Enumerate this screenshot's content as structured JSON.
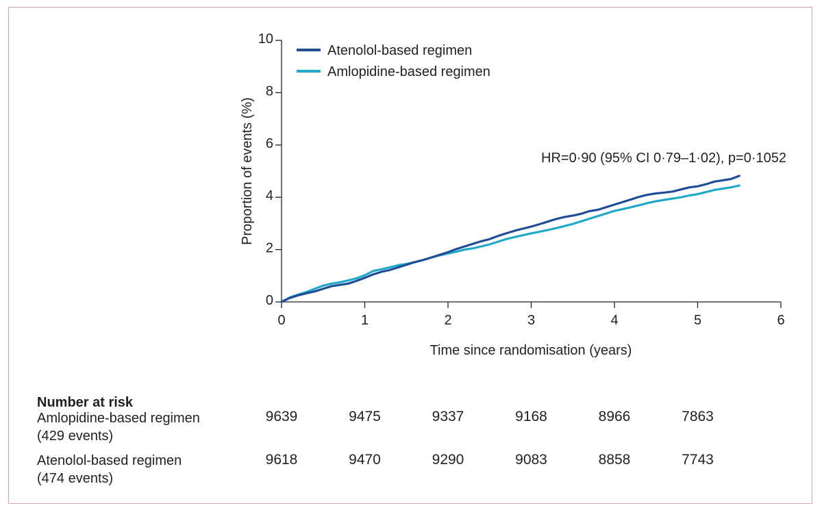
{
  "chart_data": {
    "type": "line",
    "xlabel": "Time since randomisation (years)",
    "ylabel": "Proportion of events (%)",
    "xlim": [
      0,
      6
    ],
    "ylim": [
      0,
      10
    ],
    "xticks": [
      "0",
      "1",
      "2",
      "3",
      "4",
      "5",
      "6"
    ],
    "yticks": [
      "0",
      "2",
      "4",
      "6",
      "8",
      "10"
    ],
    "grid": false,
    "legend_position": "top-left",
    "annotation": "HR=0·90 (95% CI 0·79–1·02), p=0·1052",
    "series": [
      {
        "name": "Atenolol-based regimen",
        "color": "#1f4e96",
        "x": [
          0,
          0.1,
          0.2,
          0.3,
          0.4,
          0.5,
          0.6,
          0.7,
          0.8,
          0.9,
          1.0,
          1.1,
          1.2,
          1.3,
          1.4,
          1.5,
          1.6,
          1.7,
          1.8,
          1.9,
          2.0,
          2.1,
          2.2,
          2.3,
          2.4,
          2.5,
          2.6,
          2.7,
          2.8,
          2.9,
          3.0,
          3.1,
          3.2,
          3.3,
          3.4,
          3.5,
          3.6,
          3.7,
          3.8,
          3.9,
          4.0,
          4.1,
          4.2,
          4.3,
          4.4,
          4.5,
          4.6,
          4.7,
          4.8,
          4.9,
          5.0,
          5.1,
          5.2,
          5.3,
          5.4,
          5.5
        ],
        "values": [
          0,
          0.15,
          0.25,
          0.33,
          0.4,
          0.5,
          0.6,
          0.65,
          0.7,
          0.8,
          0.92,
          1.05,
          1.15,
          1.22,
          1.32,
          1.42,
          1.52,
          1.6,
          1.7,
          1.8,
          1.9,
          2.02,
          2.12,
          2.22,
          2.32,
          2.4,
          2.52,
          2.62,
          2.72,
          2.8,
          2.88,
          2.97,
          3.07,
          3.17,
          3.25,
          3.3,
          3.37,
          3.47,
          3.52,
          3.62,
          3.72,
          3.82,
          3.92,
          4.02,
          4.1,
          4.15,
          4.18,
          4.22,
          4.3,
          4.38,
          4.42,
          4.5,
          4.6,
          4.65,
          4.7,
          4.82
        ]
      },
      {
        "name": "Amlopidine-based regimen",
        "color": "#21a8c9",
        "x": [
          0,
          0.1,
          0.2,
          0.3,
          0.4,
          0.5,
          0.6,
          0.7,
          0.8,
          0.9,
          1.0,
          1.1,
          1.2,
          1.3,
          1.4,
          1.5,
          1.6,
          1.7,
          1.8,
          1.9,
          2.0,
          2.1,
          2.2,
          2.3,
          2.4,
          2.5,
          2.6,
          2.7,
          2.8,
          2.9,
          3.0,
          3.1,
          3.2,
          3.3,
          3.4,
          3.5,
          3.6,
          3.7,
          3.8,
          3.9,
          4.0,
          4.1,
          4.2,
          4.3,
          4.4,
          4.5,
          4.6,
          4.7,
          4.8,
          4.9,
          5.0,
          5.1,
          5.2,
          5.3,
          5.4,
          5.5
        ],
        "values": [
          0,
          0.17,
          0.28,
          0.38,
          0.5,
          0.62,
          0.7,
          0.75,
          0.82,
          0.9,
          1.02,
          1.18,
          1.25,
          1.32,
          1.4,
          1.45,
          1.52,
          1.6,
          1.7,
          1.78,
          1.85,
          1.92,
          2.0,
          2.05,
          2.12,
          2.2,
          2.3,
          2.4,
          2.48,
          2.55,
          2.62,
          2.68,
          2.75,
          2.82,
          2.9,
          2.98,
          3.08,
          3.18,
          3.28,
          3.38,
          3.48,
          3.55,
          3.62,
          3.7,
          3.78,
          3.85,
          3.9,
          3.95,
          4.0,
          4.07,
          4.12,
          4.2,
          4.28,
          4.33,
          4.38,
          4.45
        ]
      }
    ]
  },
  "risk_table": {
    "title": "Number at risk",
    "rows": [
      {
        "label": "Amlopidine-based regimen",
        "events": "(429  events)",
        "values": [
          "9639",
          "9475",
          "9337",
          "9168",
          "8966",
          "7863"
        ]
      },
      {
        "label": "Atenolol-based regimen",
        "events": "(474 events)",
        "values": [
          "9618",
          "9470",
          "9290",
          "9083",
          "8858",
          "7743"
        ]
      }
    ]
  }
}
